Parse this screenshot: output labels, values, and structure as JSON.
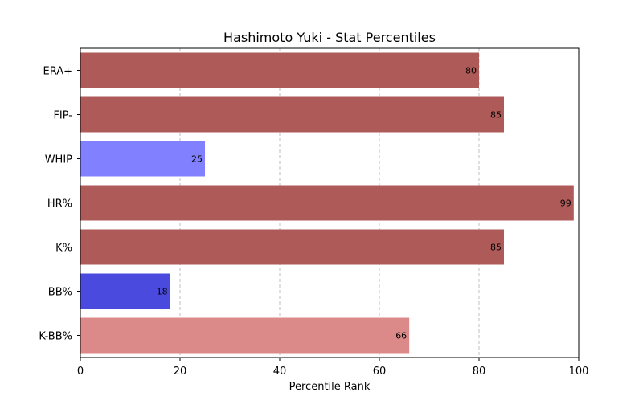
{
  "chart_data": {
    "type": "bar",
    "orientation": "horizontal",
    "title": "Hashimoto Yuki - Stat Percentiles",
    "xlabel": "Percentile Rank",
    "ylabel": "",
    "xlim": [
      0,
      100
    ],
    "xticks": [
      "0",
      "20",
      "40",
      "60",
      "80",
      "100"
    ],
    "grid": "x-dashed",
    "categories": [
      "ERA+",
      "FIP-",
      "WHIP",
      "HR%",
      "K%",
      "BB%",
      "K-BB%"
    ],
    "values": [
      80,
      85,
      25,
      99,
      85,
      18,
      66
    ],
    "data_labels": [
      "80",
      "85",
      "25",
      "99",
      "85",
      "18",
      "66"
    ],
    "colors": [
      "#ad5a59",
      "#ad5a59",
      "#8181ff",
      "#ad5a59",
      "#ad5a59",
      "#4a4adf",
      "#dc8a89"
    ]
  }
}
